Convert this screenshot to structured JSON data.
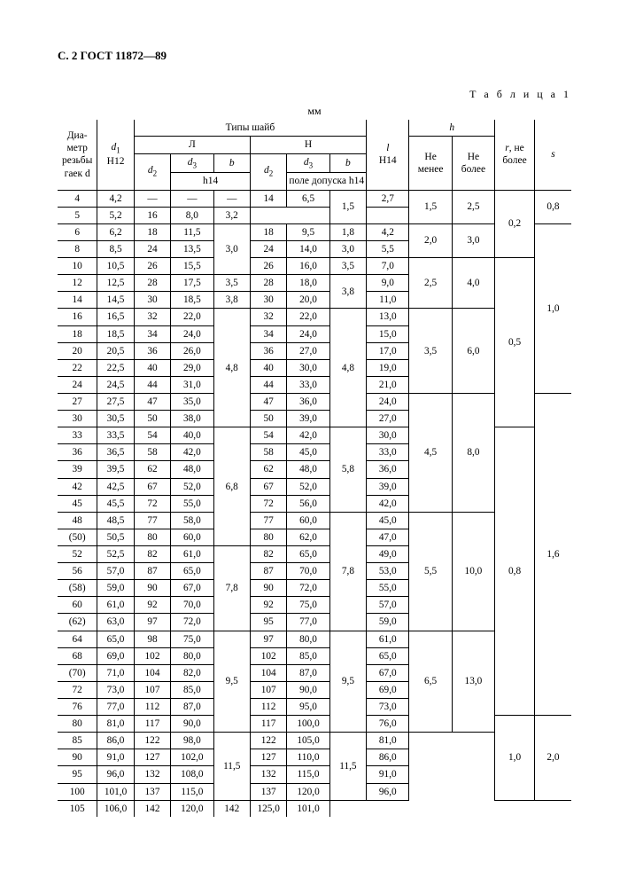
{
  "page_header": "С. 2 ГОСТ 11872—89",
  "table_label": "Т а б л и ц а  1",
  "unit": "мм",
  "header": {
    "col_dia": "Диа-\nметр\nрезьбы\nгаек d",
    "col_d1": "d₁\nH12",
    "col_types": "Типы шайб",
    "col_L": "Л",
    "col_N": "Н",
    "col_d2": "d₂",
    "col_d3": "d₃",
    "col_b": "b",
    "col_h14": "h14",
    "col_pole": "поле допуска h14",
    "col_l": "l\nH14",
    "col_h": "h",
    "col_h_min": "Не менее",
    "col_h_max": "Не более",
    "col_r": "r, не более",
    "col_s": "s"
  },
  "rows": [
    {
      "d": "4",
      "d1": "4,2",
      "Ld2": "—",
      "Ld3": "—",
      "Lb": "—",
      "Nd2": "14",
      "Nd3": "6,5",
      "Nb": "1,5",
      "l": "2,7",
      "hmin": "1,5",
      "hmax": "2,5",
      "r": "0,2",
      "s": "0,8",
      "spans": {
        "Ld2": 1,
        "Ld3": 1,
        "Lb": 1,
        "Nb": 2,
        "hmin": 2,
        "hmax": 2,
        "r": 4,
        "s": 2
      }
    },
    {
      "d": "5",
      "d1": "5,2",
      "Nd2": "16",
      "Nd3": "8,0",
      "l": "3,2"
    },
    {
      "d": "6",
      "d1": "6,2",
      "Ld2": "18",
      "Ld3": "11,5",
      "Lb": "3,0",
      "Nd2": "18",
      "Nd3": "9,5",
      "Nb": "1,8",
      "l": "4,2",
      "hmin": "2,0",
      "hmax": "3,0",
      "s": "1,0",
      "spans": {
        "Lb": 3,
        "hmin": 2,
        "hmax": 2,
        "s": 10
      }
    },
    {
      "d": "8",
      "d1": "8,5",
      "Ld2": "24",
      "Ld3": "13,5",
      "Nd2": "24",
      "Nd3": "14,0",
      "Nb": "3,0",
      "l": "5,5"
    },
    {
      "d": "10",
      "d1": "10,5",
      "Ld2": "26",
      "Ld3": "15,5",
      "Nd2": "26",
      "Nd3": "16,0",
      "Nb": "3,5",
      "l": "7,0",
      "hmin": "2,5",
      "hmax": "4,0",
      "r": "0,5",
      "spans": {
        "hmin": 3,
        "hmax": 3,
        "r": 10
      }
    },
    {
      "d": "12",
      "d1": "12,5",
      "Ld2": "28",
      "Ld3": "17,5",
      "Lb": "3,5",
      "Nd2": "28",
      "Nd3": "18,0",
      "Nb": "3,8",
      "l": "9,0",
      "spans": {
        "Nb": 2
      }
    },
    {
      "d": "14",
      "d1": "14,5",
      "Ld2": "30",
      "Ld3": "18,5",
      "Lb": "3,8",
      "Nd2": "30",
      "Nd3": "20,0",
      "l": "11,0"
    },
    {
      "d": "16",
      "d1": "16,5",
      "Ld2": "32",
      "Ld3": "22,0",
      "Lb": "4,8",
      "Nd2": "32",
      "Nd3": "22,0",
      "Nb": "4,8",
      "l": "13,0",
      "hmin": "3,5",
      "hmax": "6,0",
      "spans": {
        "Lb": 7,
        "Nb": 7,
        "hmin": 5,
        "hmax": 5
      }
    },
    {
      "d": "18",
      "d1": "18,5",
      "Ld2": "34",
      "Ld3": "24,0",
      "Nd2": "34",
      "Nd3": "24,0",
      "l": "15,0"
    },
    {
      "d": "20",
      "d1": "20,5",
      "Ld2": "36",
      "Ld3": "26,0",
      "Nd2": "36",
      "Nd3": "27,0",
      "l": "17,0"
    },
    {
      "d": "22",
      "d1": "22,5",
      "Ld2": "40",
      "Ld3": "29,0",
      "Nd2": "40",
      "Nd3": "30,0",
      "l": "19,0"
    },
    {
      "d": "24",
      "d1": "24,5",
      "Ld2": "44",
      "Ld3": "31,0",
      "Nd2": "44",
      "Nd3": "33,0",
      "l": "21,0"
    },
    {
      "d": "27",
      "d1": "27,5",
      "Ld2": "47",
      "Ld3": "35,0",
      "Nd2": "47",
      "Nd3": "36,0",
      "l": "24,0",
      "hmin": "4,5",
      "hmax": "8,0",
      "s": "1,6",
      "spans": {
        "hmin": 7,
        "hmax": 7,
        "s": 19
      }
    },
    {
      "d": "30",
      "d1": "30,5",
      "Ld2": "50",
      "Ld3": "38,0",
      "Nd2": "50",
      "Nd3": "39,0",
      "l": "27,0"
    },
    {
      "d": "33",
      "d1": "33,5",
      "Ld2": "54",
      "Ld3": "40,0",
      "Lb": "6,8",
      "Nd2": "54",
      "Nd3": "42,0",
      "Nb": "5,8",
      "l": "30,0",
      "r": "0,8",
      "spans": {
        "Lb": 7,
        "Nb": 5,
        "r": 17
      }
    },
    {
      "d": "36",
      "d1": "36,5",
      "Ld2": "58",
      "Ld3": "42,0",
      "Nd2": "58",
      "Nd3": "45,0",
      "l": "33,0"
    },
    {
      "d": "39",
      "d1": "39,5",
      "Ld2": "62",
      "Ld3": "48,0",
      "Nd2": "62",
      "Nd3": "48,0",
      "l": "36,0"
    },
    {
      "d": "42",
      "d1": "42,5",
      "Ld2": "67",
      "Ld3": "52,0",
      "Nd2": "67",
      "Nd3": "52,0",
      "l": "39,0"
    },
    {
      "d": "45",
      "d1": "45,5",
      "Ld2": "72",
      "Ld3": "55,0",
      "Nd2": "72",
      "Nd3": "56,0",
      "l": "42,0"
    },
    {
      "d": "48",
      "d1": "48,5",
      "Ld2": "77",
      "Ld3": "58,0",
      "Nd2": "77",
      "Nd3": "60,0",
      "Nb": "7,8",
      "l": "45,0",
      "hmin": "5,5",
      "hmax": "10,0",
      "spans": {
        "Nb": 7,
        "hmin": 7,
        "hmax": 7
      }
    },
    {
      "d": "(50)",
      "d1": "50,5",
      "Ld2": "80",
      "Ld3": "60,0",
      "Nd2": "80",
      "Nd3": "62,0",
      "l": "47,0"
    },
    {
      "d": "52",
      "d1": "52,5",
      "Ld2": "82",
      "Ld3": "61,0",
      "Lb": "7,8",
      "Nd2": "82",
      "Nd3": "65,0",
      "l": "49,0",
      "spans": {
        "Lb": 5
      }
    },
    {
      "d": "56",
      "d1": "57,0",
      "Ld2": "87",
      "Ld3": "65,0",
      "Nd2": "87",
      "Nd3": "70,0",
      "l": "53,0"
    },
    {
      "d": "(58)",
      "d1": "59,0",
      "Ld2": "90",
      "Ld3": "67,0",
      "Nd2": "90",
      "Nd3": "72,0",
      "l": "55,0"
    },
    {
      "d": "60",
      "d1": "61,0",
      "Ld2": "92",
      "Ld3": "70,0",
      "Nd2": "92",
      "Nd3": "75,0",
      "l": "57,0"
    },
    {
      "d": "(62)",
      "d1": "63,0",
      "Ld2": "97",
      "Ld3": "72,0",
      "Nd2": "95",
      "Nd3": "77,0",
      "l": "59,0"
    },
    {
      "d": "64",
      "d1": "65,0",
      "Ld2": "98",
      "Ld3": "75,0",
      "Lb": "9,5",
      "Nd2": "97",
      "Nd3": "80,0",
      "Nb": "9,5",
      "l": "61,0",
      "hmin": "6,5",
      "hmax": "13,0",
      "spans": {
        "Lb": 6,
        "Nb": 6,
        "hmin": 6,
        "hmax": 6
      }
    },
    {
      "d": "68",
      "d1": "69,0",
      "Ld2": "102",
      "Ld3": "80,0",
      "Nd2": "102",
      "Nd3": "85,0",
      "l": "65,0"
    },
    {
      "d": "(70)",
      "d1": "71,0",
      "Ld2": "104",
      "Ld3": "82,0",
      "Nd2": "104",
      "Nd3": "87,0",
      "l": "67,0"
    },
    {
      "d": "72",
      "d1": "73,0",
      "Ld2": "107",
      "Ld3": "85,0",
      "Nd2": "107",
      "Nd3": "90,0",
      "l": "69,0"
    },
    {
      "d": "76",
      "d1": "77,0",
      "Ld2": "112",
      "Ld3": "87,0",
      "Nd2": "112",
      "Nd3": "95,0",
      "l": "73,0"
    },
    {
      "d": "80",
      "d1": "81,0",
      "Ld2": "117",
      "Ld3": "90,0",
      "Nd2": "117",
      "Nd3": "100,0",
      "l": "76,0",
      "r": "1,0",
      "s": "2,0",
      "spans": {
        "r": 5,
        "s": 5
      }
    },
    {
      "d": "85",
      "d1": "86,0",
      "Ld2": "122",
      "Ld3": "98,0",
      "Lb": "11,5",
      "Nd2": "122",
      "Nd3": "105,0",
      "Nb": "11,5",
      "l": "81,0",
      "spans": {
        "Lb": 4,
        "Nb": 4
      }
    },
    {
      "d": "90",
      "d1": "91,0",
      "Ld2": "127",
      "Ld3": "102,0",
      "Nd2": "127",
      "Nd3": "110,0",
      "l": "86,0"
    },
    {
      "d": "95",
      "d1": "96,0",
      "Ld2": "132",
      "Ld3": "108,0",
      "Nd2": "132",
      "Nd3": "115,0",
      "l": "91,0"
    },
    {
      "d": "100",
      "d1": "101,0",
      "Ld2": "137",
      "Ld3": "115,0",
      "Nd2": "137",
      "Nd3": "120,0",
      "l": "96,0"
    },
    {
      "d": "105",
      "d1": "106,0",
      "Ld2": "142",
      "Ld3": "120,0",
      "Nd2": "142",
      "Nd3": "125,0",
      "l": "101,0"
    }
  ]
}
